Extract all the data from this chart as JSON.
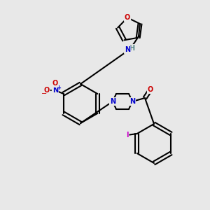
{
  "bg_color": "#e8e8e8",
  "bond_color": "#000000",
  "bond_width": 1.5,
  "atom_colors": {
    "O": "#cc0000",
    "N": "#0000cc",
    "I": "#cc00cc",
    "H": "#5a8a8a",
    "C": "#000000"
  }
}
